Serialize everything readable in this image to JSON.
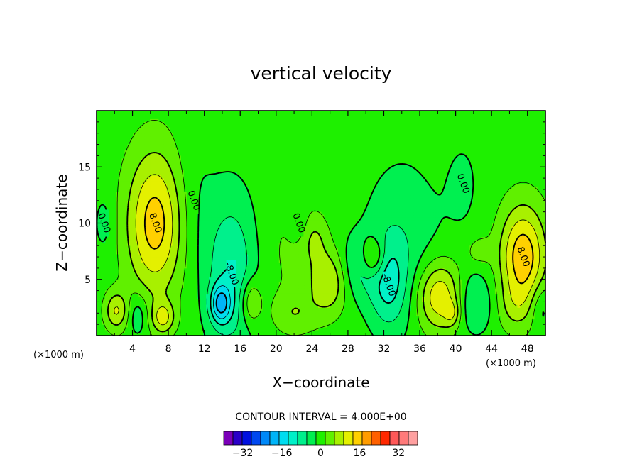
{
  "chart_data": {
    "type": "contour",
    "title": "vertical velocity",
    "xlabel": "X−coordinate",
    "ylabel": "Z−coordinate",
    "x_unit_left": "(×1000 m)",
    "x_unit_right": "(×1000 m)",
    "xlim": [
      0,
      50
    ],
    "ylim": [
      0,
      20
    ],
    "x_ticks": [
      4,
      8,
      12,
      16,
      20,
      24,
      28,
      32,
      36,
      40,
      44,
      48
    ],
    "x_tick_labels": [
      "4",
      "8",
      "12",
      "16",
      "20",
      "24",
      "28",
      "32",
      "36",
      "40",
      "44",
      "48"
    ],
    "y_ticks": [
      5,
      10,
      15
    ],
    "y_tick_labels": [
      "5",
      "10",
      "15"
    ],
    "contour_interval_text": "CONTOUR INTERVAL = 4.000E+00",
    "contour_interval": 4,
    "background_level": 2,
    "colorbar": {
      "levels": [
        -36,
        -32,
        -28,
        -24,
        -20,
        -16,
        -12,
        -8,
        -4,
        0,
        4,
        8,
        12,
        16,
        20,
        24,
        28,
        32,
        36
      ],
      "tick_values": [
        -32,
        -16,
        0,
        16,
        32
      ],
      "tick_labels": [
        "−32",
        "−16",
        "0",
        "16",
        "32"
      ],
      "colors": [
        "#7a00b8",
        "#2a00c8",
        "#0010e0",
        "#0048f0",
        "#0088f8",
        "#00b4f8",
        "#00dcf0",
        "#00f0c8",
        "#00f08c",
        "#00f050",
        "#1ef000",
        "#60f000",
        "#a8f000",
        "#e4f000",
        "#ffd000",
        "#ff9c00",
        "#ff6000",
        "#ff2800",
        "#ff5858",
        "#ff7a7a",
        "#ffa0a0"
      ]
    },
    "features": [
      {
        "x": 6.5,
        "z": 10.0,
        "sx": 2.2,
        "sz": 4.5,
        "amp": 16,
        "label": "8.00"
      },
      {
        "x": 2.2,
        "z": 2.2,
        "sx": 0.9,
        "sz": 1.2,
        "amp": 10
      },
      {
        "x": 7.4,
        "z": 1.6,
        "sx": 0.9,
        "sz": 1.0,
        "amp": 10
      },
      {
        "x": 4.6,
        "z": 1.8,
        "sx": 0.8,
        "sz": 1.4,
        "amp": -6
      },
      {
        "x": 15.0,
        "z": 5.5,
        "sx": 2.0,
        "sz": 5.0,
        "amp": -10,
        "label": "-8.00"
      },
      {
        "x": 17.2,
        "z": 3.0,
        "sx": 0.8,
        "sz": 1.4,
        "amp": 9
      },
      {
        "x": 13.8,
        "z": 2.8,
        "sx": 0.8,
        "sz": 1.2,
        "amp": -14
      },
      {
        "x": 21.5,
        "z": 7.5,
        "sx": 2.5,
        "sz": 4.0,
        "amp": 2.5
      },
      {
        "x": 24.3,
        "z": 8.6,
        "sx": 1.0,
        "sz": 1.5,
        "amp": 5
      },
      {
        "x": 25.9,
        "z": 4.8,
        "sx": 1.5,
        "sz": 2.0,
        "amp": 10
      },
      {
        "x": 22.0,
        "z": 2.0,
        "sx": 1.8,
        "sz": 1.3,
        "amp": 5
      },
      {
        "x": 29.0,
        "z": 6.0,
        "sx": 1.5,
        "sz": 2.0,
        "amp": -6
      },
      {
        "x": 34.0,
        "z": 8.5,
        "sx": 3.0,
        "sz": 5.0,
        "amp": -5
      },
      {
        "x": 32.5,
        "z": 4.5,
        "sx": 1.5,
        "sz": 2.8,
        "amp": -9,
        "label": "-8.00"
      },
      {
        "x": 30.8,
        "z": 7.0,
        "sx": 0.9,
        "sz": 1.2,
        "amp": 10
      },
      {
        "x": 38.2,
        "z": 3.5,
        "sx": 1.8,
        "sz": 2.2,
        "amp": 14
      },
      {
        "x": 39.6,
        "z": 2.0,
        "sx": 0.6,
        "sz": 0.8,
        "amp": 6
      },
      {
        "x": 42.0,
        "z": 3.0,
        "sx": 1.5,
        "sz": 2.0,
        "amp": -7
      },
      {
        "x": 42.5,
        "z": 7.5,
        "sx": 1.0,
        "sz": 1.0,
        "amp": 4
      },
      {
        "x": 47.5,
        "z": 7.0,
        "sx": 1.8,
        "sz": 3.2,
        "amp": 17,
        "label": "8.00"
      },
      {
        "x": 46.5,
        "z": 2.5,
        "sx": 1.3,
        "sz": 1.5,
        "amp": 4
      },
      {
        "x": 49.5,
        "z": 2.5,
        "sx": 0.8,
        "sz": 1.5,
        "amp": -5
      },
      {
        "x": 0.8,
        "z": 10.0,
        "sx": 0.8,
        "sz": 2.0,
        "amp": -3.5,
        "label": "0.00"
      },
      {
        "x": 10.8,
        "z": 12.0,
        "sx": 1.6,
        "sz": 5.0,
        "amp": -2.5,
        "label": "0.00"
      },
      {
        "x": 40.8,
        "z": 13.5,
        "sx": 1.6,
        "sz": 3.5,
        "amp": -2.5,
        "label": "0.00"
      },
      {
        "x": 22.5,
        "z": 10.0,
        "sx": 0.8,
        "sz": 1.2,
        "amp": -3,
        "label": "0.00"
      }
    ]
  }
}
